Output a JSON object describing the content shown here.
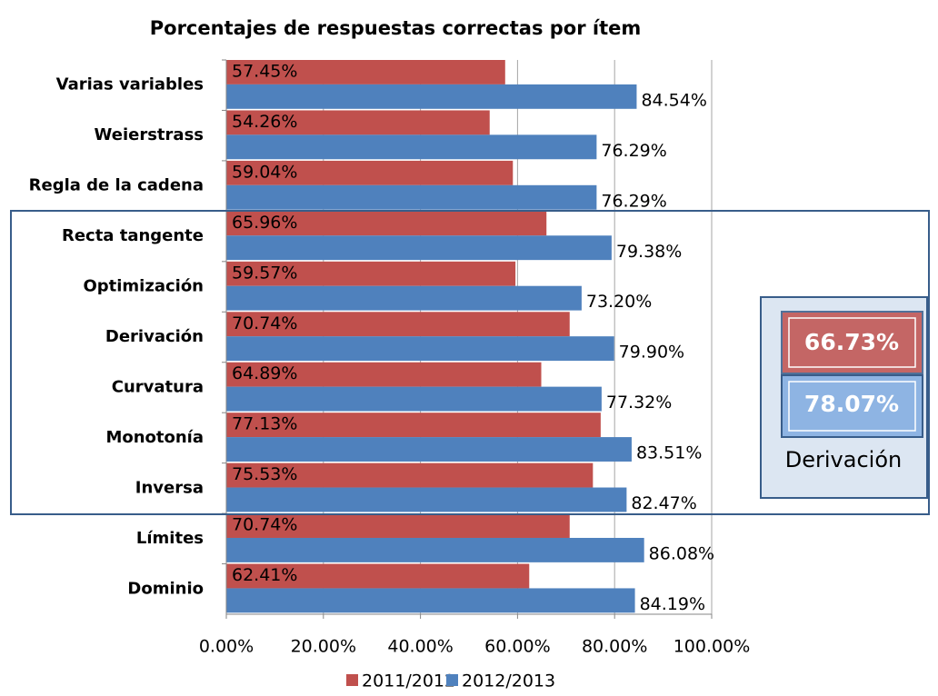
{
  "chart_data": {
    "type": "barh",
    "title": "Porcentajes de respuestas correctas por ítem",
    "categories": [
      "Varias variables",
      "Weierstrass",
      "Regla de la cadena",
      "Recta tangente",
      "Optimización",
      "Derivación",
      "Curvatura",
      "Monotonía",
      "Inversa",
      "Límites",
      "Dominio"
    ],
    "series": [
      {
        "name": "2011/2012",
        "color": "#c0504d",
        "values": [
          57.45,
          54.26,
          59.04,
          65.96,
          59.57,
          70.74,
          64.89,
          77.13,
          75.53,
          70.74,
          62.41
        ],
        "value_labels": [
          "57.45%",
          "54.26%",
          "59.04%",
          "65.96%",
          "59.57%",
          "70.74%",
          "64.89%",
          "77.13%",
          "75.53%",
          "70.74%",
          "62.41%"
        ]
      },
      {
        "name": "2012/2013",
        "color": "#4f81bd",
        "values": [
          84.54,
          76.29,
          76.29,
          79.38,
          73.2,
          79.9,
          77.32,
          83.51,
          82.47,
          86.08,
          84.19
        ],
        "value_labels": [
          "84.54%",
          "76.29%",
          "76.29%",
          "79.38%",
          "73.20%",
          "79.90%",
          "77.32%",
          "83.51%",
          "82.47%",
          "86.08%",
          "84.19%"
        ]
      }
    ],
    "xlim": [
      0,
      100
    ],
    "xticks": [
      {
        "value": 0,
        "label": "0.00%"
      },
      {
        "value": 20,
        "label": "20.00%"
      },
      {
        "value": 40,
        "label": "40.00%"
      },
      {
        "value": 60,
        "label": "60.00%"
      },
      {
        "value": 80,
        "label": "80.00%"
      },
      {
        "value": 100,
        "label": "100.00%"
      }
    ],
    "grid": true,
    "legend": "bottom",
    "annotation": {
      "label": "Derivación",
      "values": [
        "66.73%",
        "78.07%"
      ]
    }
  }
}
